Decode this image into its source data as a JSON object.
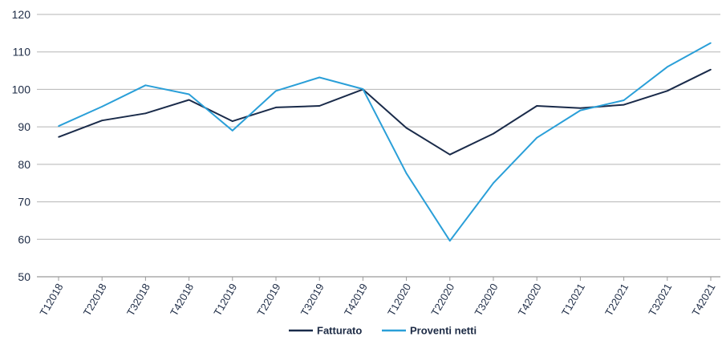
{
  "chart_data": {
    "type": "line",
    "title": "",
    "xlabel": "",
    "ylabel": "",
    "ylim": [
      50,
      120
    ],
    "yticks": [
      50,
      60,
      70,
      80,
      90,
      100,
      110,
      120
    ],
    "grid": true,
    "legend_position": "bottom",
    "categories": [
      "T12018",
      "T22018",
      "T32018",
      "T42018",
      "T12019",
      "T22019",
      "T32019",
      "T42019",
      "T12020",
      "T22020",
      "T32020",
      "T42020",
      "T12021",
      "T22021",
      "T32021",
      "T42021"
    ],
    "series": [
      {
        "name": "Fatturato",
        "color": "#1a2b4a",
        "values": [
          87.3,
          91.7,
          93.6,
          97.2,
          91.5,
          95.2,
          95.6,
          100.0,
          89.7,
          82.6,
          88.2,
          95.6,
          95.0,
          95.9,
          99.6,
          105.3
        ]
      },
      {
        "name": "Proventi netti",
        "color": "#2a9fd8",
        "values": [
          90.2,
          95.4,
          101.1,
          98.7,
          89.0,
          99.6,
          103.2,
          100.1,
          77.6,
          59.6,
          75.0,
          87.1,
          94.4,
          97.1,
          106.0,
          112.4
        ]
      }
    ]
  }
}
